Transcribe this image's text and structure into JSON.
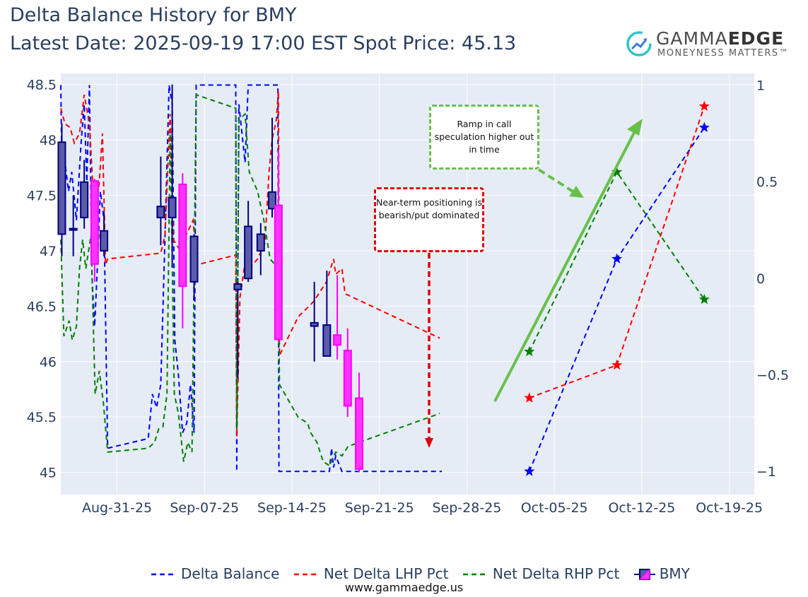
{
  "title_line1": "Delta Balance History for BMY",
  "title_line2": "Latest Date: 2025-09-19 17:00 EST Spot Price: 45.13",
  "logo": {
    "brand_regular": "GAMMA",
    "brand_bold": "EDGE",
    "tagline": "MONEYNESS MATTERS™",
    "icon": "trend-arrow-circle-icon"
  },
  "footer": "www.gammaedge.us",
  "annotations": {
    "green": "Ramp in call speculation higher out in time",
    "red": "Near-term positioning is bearish/put dominated"
  },
  "colors": {
    "delta_balance": "#0000ff",
    "lhp": "#ff0000",
    "rhp": "#008000",
    "candle_up_fill": "#5b5ba8",
    "candle_up_line": "#000080",
    "candle_down_fill": "#ff33ff",
    "candle_down_line": "#ff00ff",
    "bg": "#e5ecf6",
    "green_arrow": "#67c04a",
    "red_arrow": "#e10000"
  },
  "chart_data": {
    "type": "candlestick+line",
    "x_ticks": [
      "2025-08-31",
      "2025-09-07",
      "2025-09-14",
      "2025-09-21",
      "2025-09-28",
      "2025-10-05",
      "2025-10-12",
      "2025-10-19"
    ],
    "x_tick_labels": [
      "Aug-31-25",
      "Sep-07-25",
      "Sep-14-25",
      "Sep-21-25",
      "Sep-28-25",
      "Oct-05-25",
      "Oct-12-25",
      "Oct-19-25"
    ],
    "xlim": [
      "2025-08-26T12:00",
      "2025-10-21T00:00"
    ],
    "y_left": {
      "ticks": [
        45,
        45.5,
        46,
        46.5,
        47,
        47.5,
        48,
        48.5
      ],
      "tick_labels": [
        "45",
        "45.5",
        "46",
        "46.5",
        "47",
        "47.5",
        "48",
        "48.5"
      ],
      "range": [
        44.8,
        48.6
      ]
    },
    "y_right": {
      "ticks": [
        -1,
        -0.5,
        0,
        0.5,
        1
      ],
      "tick_labels": [
        "−1",
        "−0.5",
        "0",
        "0.5",
        "1"
      ],
      "range": [
        -1.12,
        1.06
      ]
    },
    "legend": [
      "Delta Balance",
      "Net Delta LHP Pct",
      "Net Delta RHP Pct",
      "BMY"
    ],
    "candles": [
      {
        "t": "2025-08-26T14:00",
        "open": 47.15,
        "high": 48.15,
        "low": 46.95,
        "close": 47.98
      },
      {
        "t": "2025-08-27T12:00",
        "open": 47.2,
        "high": 47.5,
        "low": 46.95,
        "close": 47.2
      },
      {
        "t": "2025-08-28T09:00",
        "open": 47.3,
        "high": 47.82,
        "low": 47.2,
        "close": 47.62
      },
      {
        "t": "2025-08-29T05:00",
        "open": 47.63,
        "high": 47.65,
        "low": 46.72,
        "close": 46.88
      },
      {
        "t": "2025-08-29T23:00",
        "open": 47.0,
        "high": 47.35,
        "low": 46.95,
        "close": 47.18
      },
      {
        "t": "2025-09-03T12:00",
        "open": 47.3,
        "high": 47.85,
        "low": 47.05,
        "close": 47.4
      },
      {
        "t": "2025-09-04T10:00",
        "open": 47.3,
        "high": 48.5,
        "low": 46.85,
        "close": 47.48
      },
      {
        "t": "2025-09-05T06:00",
        "open": 47.6,
        "high": 47.7,
        "low": 46.3,
        "close": 46.68
      },
      {
        "t": "2025-09-06T04:00",
        "open": 46.72,
        "high": 47.15,
        "low": 46.55,
        "close": 47.13
      },
      {
        "t": "2025-09-09T16:00",
        "open": 46.65,
        "high": 46.72,
        "low": 45.85,
        "close": 46.7
      },
      {
        "t": "2025-09-10T12:00",
        "open": 46.75,
        "high": 47.45,
        "low": 46.72,
        "close": 47.22
      },
      {
        "t": "2025-09-11T12:00",
        "open": 47.0,
        "high": 47.25,
        "low": 46.78,
        "close": 47.15
      },
      {
        "t": "2025-09-12T10:00",
        "open": 47.38,
        "high": 48.2,
        "low": 47.3,
        "close": 47.53
      },
      {
        "t": "2025-09-12T22:00",
        "open": 47.41,
        "high": 47.9,
        "low": 46.18,
        "close": 46.2
      },
      {
        "t": "2025-09-15T19:00",
        "open": 46.32,
        "high": 46.72,
        "low": 46.0,
        "close": 46.35
      },
      {
        "t": "2025-09-16T19:00",
        "open": 46.05,
        "high": 46.82,
        "low": 46.05,
        "close": 46.33
      },
      {
        "t": "2025-09-17T15:00",
        "open": 46.24,
        "high": 46.78,
        "low": 46.02,
        "close": 46.15
      },
      {
        "t": "2025-09-18T11:00",
        "open": 46.1,
        "high": 46.3,
        "low": 45.5,
        "close": 45.6
      },
      {
        "t": "2025-09-19T09:00",
        "open": 45.67,
        "high": 45.9,
        "low": 45.0,
        "close": 45.03
      }
    ],
    "series": [
      {
        "name": "Delta Balance",
        "axis": "right",
        "dash": true,
        "points": [
          [
            "2025-08-26T12:00",
            1.0
          ],
          [
            "2025-08-26T15:00",
            0.35
          ],
          [
            "2025-08-26T20:00",
            0.6
          ],
          [
            "2025-08-27T03:00",
            0.45
          ],
          [
            "2025-08-27T09:00",
            0.55
          ],
          [
            "2025-08-27T18:00",
            0.3
          ],
          [
            "2025-08-28T03:00",
            0.7
          ],
          [
            "2025-08-28T09:00",
            0.9
          ],
          [
            "2025-08-28T14:00",
            0.5
          ],
          [
            "2025-08-28T19:00",
            1.0
          ],
          [
            "2025-08-29T00:00",
            0.0
          ],
          [
            "2025-08-29T05:00",
            -0.25
          ],
          [
            "2025-08-29T10:00",
            0.05
          ],
          [
            "2025-08-29T16:00",
            0.45
          ],
          [
            "2025-08-29T23:00",
            0.3
          ],
          [
            "2025-08-30T06:00",
            -0.88
          ],
          [
            "2025-09-02T12:00",
            -0.83
          ],
          [
            "2025-09-02T20:00",
            -0.6
          ],
          [
            "2025-09-03T04:00",
            -0.67
          ],
          [
            "2025-09-03T12:00",
            -0.55
          ],
          [
            "2025-09-03T20:00",
            0.2
          ],
          [
            "2025-09-04T04:00",
            1.0
          ],
          [
            "2025-09-04T10:00",
            0.9
          ],
          [
            "2025-09-04T15:00",
            -0.32
          ],
          [
            "2025-09-04T22:00",
            -0.5
          ],
          [
            "2025-09-05T06:00",
            -0.8
          ],
          [
            "2025-09-05T14:00",
            -0.75
          ],
          [
            "2025-09-05T21:00",
            -0.55
          ],
          [
            "2025-09-06T04:00",
            -0.8
          ],
          [
            "2025-09-06T08:00",
            1.0
          ],
          [
            "2025-09-09T12:00",
            1.0
          ],
          [
            "2025-09-09T14:00",
            -1.0
          ],
          [
            "2025-09-09T18:00",
            0.9
          ],
          [
            "2025-09-10T06:00",
            0.6
          ],
          [
            "2025-09-10T12:00",
            1.0
          ],
          [
            "2025-09-12T21:00",
            1.0
          ],
          [
            "2025-09-12T23:00",
            -1.0
          ],
          [
            "2025-09-17T00:00",
            -1.0
          ],
          [
            "2025-09-17T04:00",
            -0.88
          ],
          [
            "2025-09-17T08:00",
            -0.98
          ],
          [
            "2025-09-17T12:00",
            -0.92
          ],
          [
            "2025-09-18T00:00",
            -1.0
          ],
          [
            "2025-09-26T00:00",
            -1.0
          ]
        ]
      },
      {
        "name": "Net Delta LHP Pct",
        "axis": "right",
        "dash": true,
        "points": [
          [
            "2025-08-26T12:00",
            0.88
          ],
          [
            "2025-08-26T20:00",
            0.8
          ],
          [
            "2025-08-27T06:00",
            0.78
          ],
          [
            "2025-08-27T14:00",
            0.7
          ],
          [
            "2025-08-28T00:00",
            0.75
          ],
          [
            "2025-08-28T09:00",
            0.95
          ],
          [
            "2025-08-28T19:00",
            0.8
          ],
          [
            "2025-08-29T02:00",
            0.45
          ],
          [
            "2025-08-29T08:00",
            0.35
          ],
          [
            "2025-08-29T14:00",
            0.5
          ],
          [
            "2025-08-29T20:00",
            0.75
          ],
          [
            "2025-08-30T02:00",
            0.07
          ],
          [
            "2025-08-30T06:00",
            0.1
          ],
          [
            "2025-09-03T12:00",
            0.13
          ],
          [
            "2025-09-03T20:00",
            0.22
          ],
          [
            "2025-09-04T06:00",
            0.85
          ],
          [
            "2025-09-04T12:00",
            0.2
          ],
          [
            "2025-09-05T00:00",
            0.15
          ],
          [
            "2025-09-06T02:00",
            0.3
          ],
          [
            "2025-09-06T10:00",
            0.07
          ],
          [
            "2025-09-09T12:00",
            0.12
          ],
          [
            "2025-09-09T14:00",
            -0.82
          ],
          [
            "2025-09-09T20:00",
            -0.1
          ],
          [
            "2025-09-10T06:00",
            0.08
          ],
          [
            "2025-09-10T14:00",
            0.05
          ],
          [
            "2025-09-11T06:00",
            0.1
          ],
          [
            "2025-09-11T20:00",
            0.18
          ],
          [
            "2025-09-12T04:00",
            0.55
          ],
          [
            "2025-09-12T10:00",
            0.72
          ],
          [
            "2025-09-12T18:00",
            0.82
          ],
          [
            "2025-09-12T22:00",
            0.97
          ],
          [
            "2025-09-13T00:00",
            -0.4
          ],
          [
            "2025-09-14T12:00",
            -0.2
          ],
          [
            "2025-09-15T18:00",
            -0.12
          ],
          [
            "2025-09-16T18:00",
            -0.02
          ],
          [
            "2025-09-17T08:00",
            0.1
          ],
          [
            "2025-09-17T12:00",
            0.02
          ],
          [
            "2025-09-18T00:00",
            0.05
          ],
          [
            "2025-09-18T06:00",
            -0.08
          ],
          [
            "2025-09-25T20:00",
            -0.31
          ]
        ]
      },
      {
        "name": "Net Delta RHP Pct",
        "axis": "right",
        "dash": true,
        "points": [
          [
            "2025-08-26T12:00",
            0.2
          ],
          [
            "2025-08-26T18:00",
            -0.3
          ],
          [
            "2025-08-27T04:00",
            -0.22
          ],
          [
            "2025-08-27T10:00",
            -0.32
          ],
          [
            "2025-08-27T18:00",
            -0.25
          ],
          [
            "2025-08-28T00:00",
            0.05
          ],
          [
            "2025-08-28T06:00",
            0.2
          ],
          [
            "2025-08-28T12:00",
            0.05
          ],
          [
            "2025-08-28T22:00",
            0.22
          ],
          [
            "2025-08-29T06:00",
            -0.6
          ],
          [
            "2025-08-29T14:00",
            -0.48
          ],
          [
            "2025-08-29T22:00",
            -0.65
          ],
          [
            "2025-08-30T06:00",
            -0.9
          ],
          [
            "2025-09-02T12:00",
            -0.88
          ],
          [
            "2025-09-03T00:00",
            -0.85
          ],
          [
            "2025-09-03T08:00",
            -0.78
          ],
          [
            "2025-09-03T16:00",
            -0.77
          ],
          [
            "2025-09-04T00:00",
            -0.6
          ],
          [
            "2025-09-04T06:00",
            0.75
          ],
          [
            "2025-09-04T14:00",
            -0.6
          ],
          [
            "2025-09-04T22:00",
            -0.7
          ],
          [
            "2025-09-05T08:00",
            -0.95
          ],
          [
            "2025-09-05T16:00",
            -0.85
          ],
          [
            "2025-09-06T00:00",
            -0.9
          ],
          [
            "2025-09-06T08:00",
            0.95
          ],
          [
            "2025-09-09T12:00",
            0.88
          ],
          [
            "2025-09-09T14:00",
            -0.78
          ],
          [
            "2025-09-09T18:00",
            0.82
          ],
          [
            "2025-09-10T06:00",
            0.85
          ],
          [
            "2025-09-10T14:00",
            0.55
          ],
          [
            "2025-09-11T06:00",
            0.45
          ],
          [
            "2025-09-11T18:00",
            0.3
          ],
          [
            "2025-09-12T06:00",
            0.1
          ],
          [
            "2025-09-12T22:00",
            0.05
          ],
          [
            "2025-09-13T00:00",
            -0.55
          ],
          [
            "2025-09-14T12:00",
            -0.72
          ],
          [
            "2025-09-15T06:00",
            -0.75
          ],
          [
            "2025-09-15T12:00",
            -0.8
          ],
          [
            "2025-09-16T00:00",
            -0.85
          ],
          [
            "2025-09-16T12:00",
            -0.95
          ],
          [
            "2025-09-17T00:00",
            -0.97
          ],
          [
            "2025-09-17T12:00",
            -0.9
          ],
          [
            "2025-09-18T00:00",
            -0.92
          ],
          [
            "2025-09-18T12:00",
            -0.87
          ],
          [
            "2025-09-25T20:00",
            -0.7
          ]
        ]
      },
      {
        "name": "Delta Balance (expiry)",
        "axis": "right",
        "markers": "star",
        "points": [
          [
            "2025-10-03",
            -1.0
          ],
          [
            "2025-10-10",
            0.1
          ],
          [
            "2025-10-17",
            0.78
          ]
        ]
      },
      {
        "name": "Net Delta LHP Pct (expiry)",
        "axis": "right",
        "markers": "star",
        "points": [
          [
            "2025-10-03",
            -0.62
          ],
          [
            "2025-10-10",
            -0.45
          ],
          [
            "2025-10-17",
            0.89
          ]
        ]
      },
      {
        "name": "Net Delta RHP Pct (expiry)",
        "axis": "right",
        "markers": "star",
        "points": [
          [
            "2025-10-03",
            -0.38
          ],
          [
            "2025-10-10",
            0.55
          ],
          [
            "2025-10-17",
            -0.11
          ]
        ]
      }
    ]
  }
}
